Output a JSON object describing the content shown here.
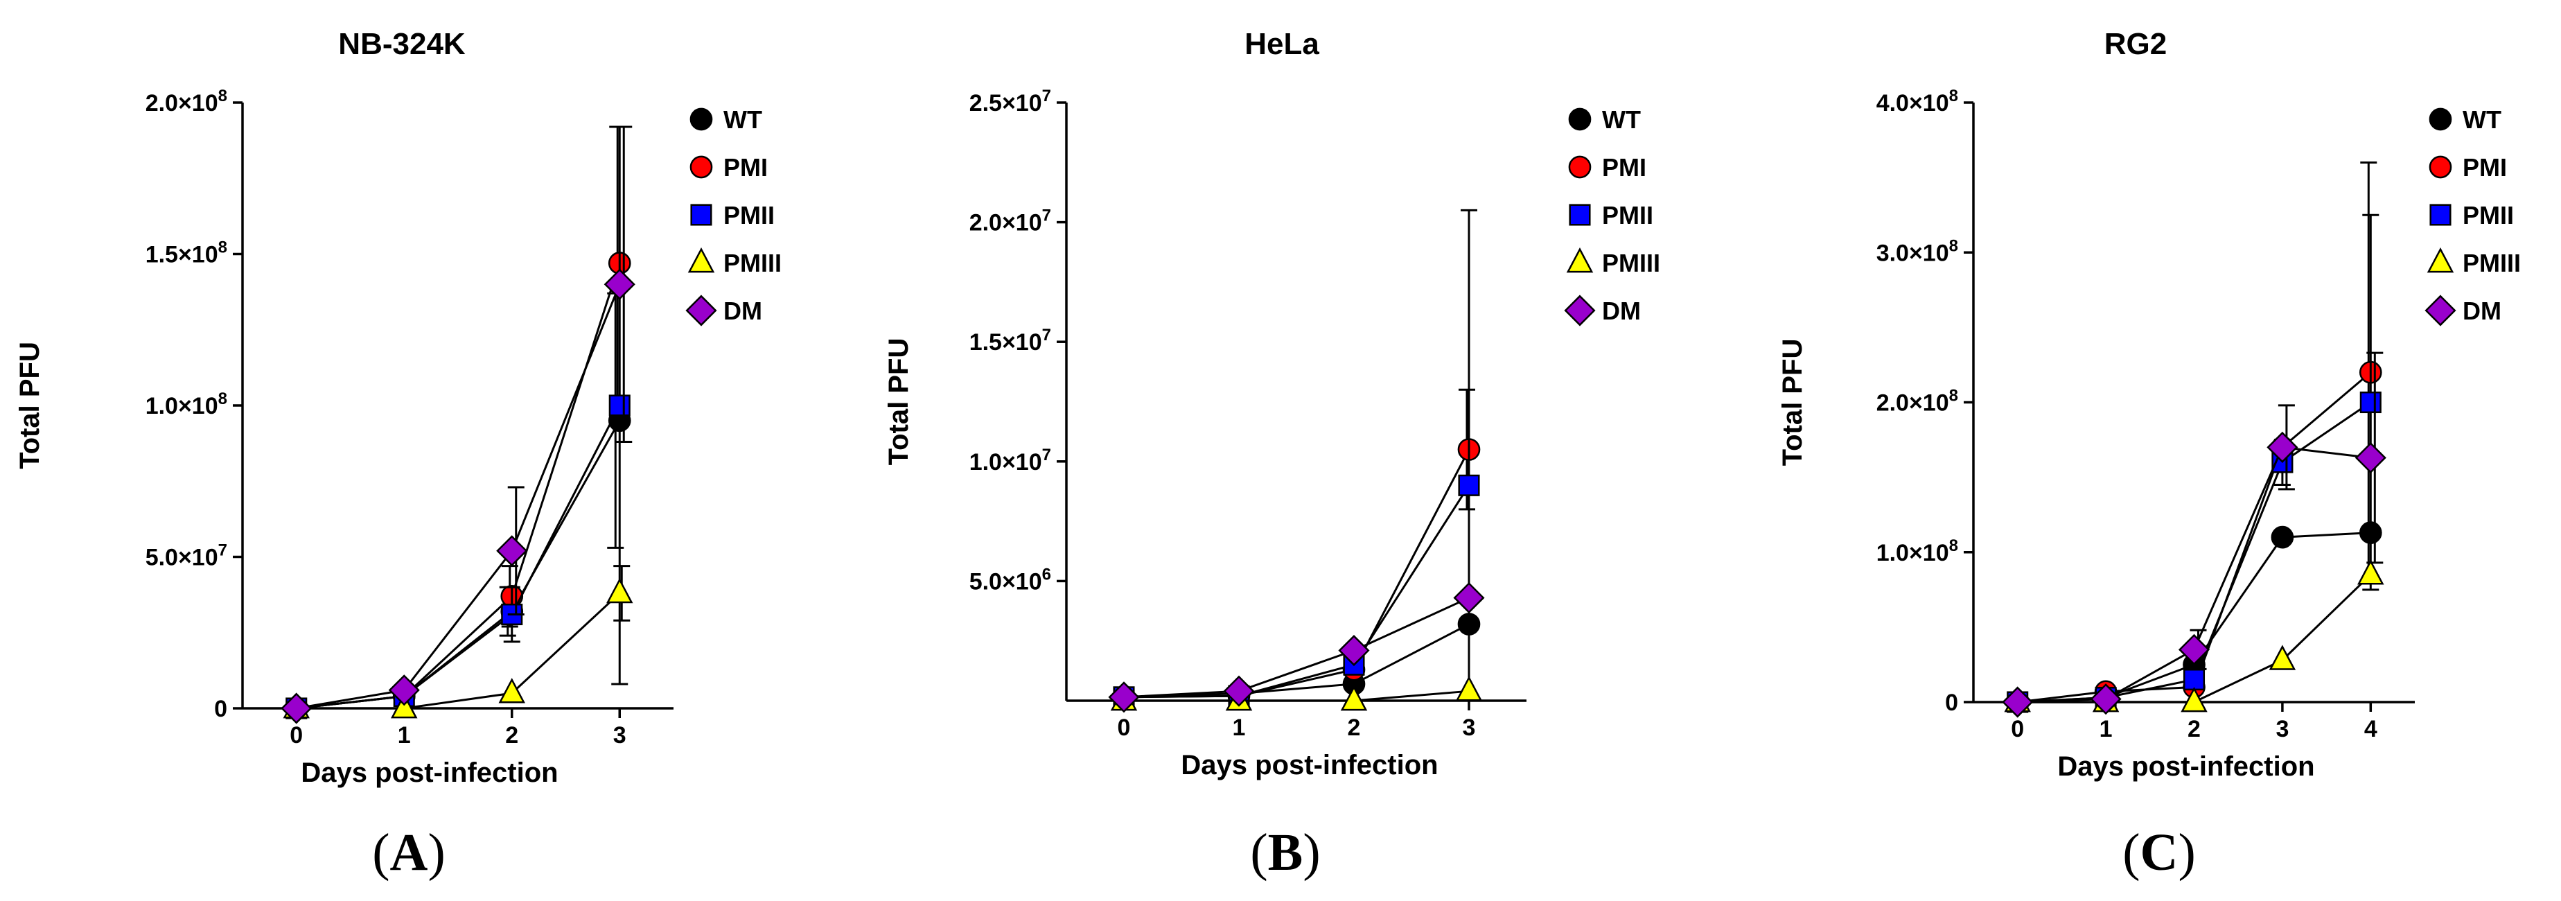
{
  "legend_colors": {
    "WT": {
      "fill": "#000000",
      "shape": "circle"
    },
    "PMI": {
      "fill": "#ff0000",
      "shape": "circle"
    },
    "PMII": {
      "fill": "#0000ff",
      "shape": "square"
    },
    "PMIII": {
      "fill": "#ffff00",
      "shape": "triangle"
    },
    "DM": {
      "fill": "#9900cc",
      "shape": "diamond"
    }
  },
  "chart_data": [
    {
      "type": "line",
      "panel_label": "A",
      "title": "NB-324K",
      "xlabel": "Days post-infection",
      "ylabel": "Total PFU",
      "x": [
        0,
        1,
        2,
        3
      ],
      "xticks": [
        "0",
        "1",
        "2",
        "3"
      ],
      "xlim": [
        -0.5,
        3.5
      ],
      "ylim": [
        0,
        200000000
      ],
      "yticks": [
        {
          "value": 0,
          "label": "0"
        },
        {
          "value": 50000000,
          "label": "5.0×10",
          "exp": "7"
        },
        {
          "value": 100000000,
          "label": "1.0×10",
          "exp": "8"
        },
        {
          "value": 150000000,
          "label": "1.5×10",
          "exp": "8"
        },
        {
          "value": 200000000,
          "label": "2.0×10",
          "exp": "8"
        }
      ],
      "series": [
        {
          "name": "WT",
          "values": [
            0,
            4000000,
            32000000,
            95000000
          ],
          "err": [
            0,
            0,
            8000000,
            42000000
          ]
        },
        {
          "name": "PMI",
          "values": [
            0,
            4000000,
            37000000,
            147000000
          ],
          "err": [
            0,
            0,
            10000000,
            45000000
          ]
        },
        {
          "name": "PMII",
          "values": [
            0,
            4000000,
            31000000,
            100000000
          ],
          "err": [
            0,
            0,
            9000000,
            92000000
          ]
        },
        {
          "name": "PMIII",
          "values": [
            0,
            0,
            5000000,
            38000000
          ],
          "err": [
            0,
            0,
            0,
            9000000
          ]
        },
        {
          "name": "DM",
          "values": [
            0,
            6000000,
            52000000,
            140000000
          ],
          "err": [
            0,
            0,
            21000000,
            52000000
          ]
        }
      ]
    },
    {
      "type": "line",
      "panel_label": "B",
      "title": "HeLa",
      "xlabel": "Days post-infection",
      "ylabel": "Total PFU",
      "x": [
        0,
        1,
        2,
        3
      ],
      "xticks": [
        "0",
        "1",
        "2",
        "3"
      ],
      "xlim": [
        -0.5,
        3.5
      ],
      "ylim": [
        0,
        25000000
      ],
      "yticks": [
        {
          "value": 5000000,
          "label": "5.0×10",
          "exp": "6"
        },
        {
          "value": 10000000,
          "label": "1.0×10",
          "exp": "7"
        },
        {
          "value": 15000000,
          "label": "1.5×10",
          "exp": "7"
        },
        {
          "value": 20000000,
          "label": "2.0×10",
          "exp": "7"
        },
        {
          "value": 25000000,
          "label": "2.5×10",
          "exp": "7"
        }
      ],
      "series": [
        {
          "name": "WT",
          "values": [
            150000,
            300000,
            700000,
            3200000
          ],
          "err": [
            0,
            0,
            0,
            0
          ]
        },
        {
          "name": "PMI",
          "values": [
            150000,
            200000,
            1300000,
            10500000
          ],
          "err": [
            0,
            0,
            0,
            2500000
          ]
        },
        {
          "name": "PMII",
          "values": [
            150000,
            200000,
            1500000,
            9000000
          ],
          "err": [
            0,
            0,
            0,
            11500000
          ]
        },
        {
          "name": "PMIII",
          "values": [
            0,
            0,
            0,
            400000
          ],
          "err": [
            0,
            0,
            0,
            0
          ]
        },
        {
          "name": "DM",
          "values": [
            150000,
            400000,
            2100000,
            4300000
          ],
          "err": [
            0,
            0,
            0,
            0
          ]
        }
      ]
    },
    {
      "type": "line",
      "panel_label": "C",
      "title": "RG2",
      "xlabel": "Days post-infection",
      "ylabel": "Total PFU",
      "x": [
        0,
        1,
        2,
        3,
        4
      ],
      "xticks": [
        "0",
        "1",
        "2",
        "3",
        "4"
      ],
      "xlim": [
        -0.5,
        4.5
      ],
      "ylim": [
        0,
        400000000
      ],
      "yticks": [
        {
          "value": 0,
          "label": "0"
        },
        {
          "value": 100000000,
          "label": "1.0×10",
          "exp": "8"
        },
        {
          "value": 200000000,
          "label": "2.0×10",
          "exp": "8"
        },
        {
          "value": 300000000,
          "label": "3.0×10",
          "exp": "8"
        },
        {
          "value": 400000000,
          "label": "4.0×10",
          "exp": "8"
        }
      ],
      "series": [
        {
          "name": "WT",
          "values": [
            0,
            3000000,
            25000000,
            110000000,
            113000000
          ],
          "err": [
            0,
            0,
            0,
            0,
            0
          ]
        },
        {
          "name": "PMI",
          "values": [
            0,
            7000000,
            10000000,
            170000000,
            220000000
          ],
          "err": [
            0,
            0,
            0,
            0,
            140000000
          ]
        },
        {
          "name": "PMII",
          "values": [
            0,
            3000000,
            15000000,
            160000000,
            200000000
          ],
          "err": [
            0,
            0,
            0,
            15000000,
            125000000
          ]
        },
        {
          "name": "PMIII",
          "values": [
            0,
            0,
            0,
            28000000,
            85000000
          ],
          "err": [
            0,
            0,
            0,
            0,
            0
          ]
        },
        {
          "name": "DM",
          "values": [
            0,
            2000000,
            35000000,
            170000000,
            163000000
          ],
          "err": [
            0,
            0,
            13000000,
            28000000,
            70000000
          ]
        }
      ]
    }
  ]
}
